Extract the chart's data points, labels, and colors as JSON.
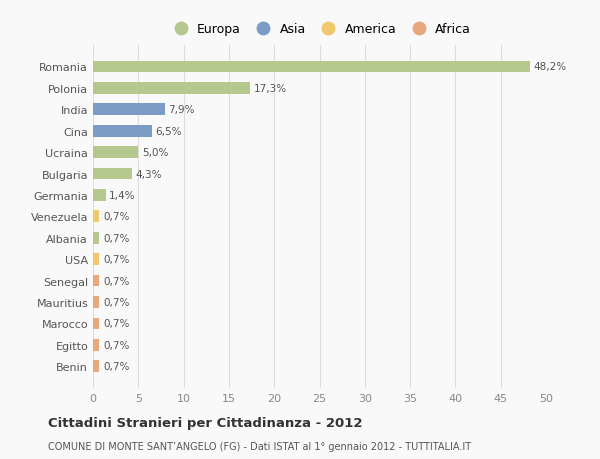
{
  "categories": [
    "Romania",
    "Polonia",
    "India",
    "Cina",
    "Ucraina",
    "Bulgaria",
    "Germania",
    "Venezuela",
    "Albania",
    "USA",
    "Senegal",
    "Mauritius",
    "Marocco",
    "Egitto",
    "Benin"
  ],
  "values": [
    48.2,
    17.3,
    7.9,
    6.5,
    5.0,
    4.3,
    1.4,
    0.7,
    0.7,
    0.7,
    0.7,
    0.7,
    0.7,
    0.7,
    0.7
  ],
  "labels": [
    "48,2%",
    "17,3%",
    "7,9%",
    "6,5%",
    "5,0%",
    "4,3%",
    "1,4%",
    "0,7%",
    "0,7%",
    "0,7%",
    "0,7%",
    "0,7%",
    "0,7%",
    "0,7%",
    "0,7%"
  ],
  "colors": [
    "#b5c98e",
    "#b5c98e",
    "#7b9cc4",
    "#7b9cc4",
    "#b5c98e",
    "#b5c98e",
    "#b5c98e",
    "#f0c86e",
    "#b5c98e",
    "#f0c86e",
    "#e8a87c",
    "#e8a87c",
    "#e8a87c",
    "#e8a87c",
    "#e8a87c"
  ],
  "legend_labels": [
    "Europa",
    "Asia",
    "America",
    "Africa"
  ],
  "legend_colors": [
    "#b5c98e",
    "#7b9cc4",
    "#f0c86e",
    "#e8a87c"
  ],
  "xlim": [
    0,
    50
  ],
  "xticks": [
    0,
    5,
    10,
    15,
    20,
    25,
    30,
    35,
    40,
    45,
    50
  ],
  "title": "Cittadini Stranieri per Cittadinanza - 2012",
  "subtitle": "COMUNE DI MONTE SANT’ANGELO (FG) - Dati ISTAT al 1° gennaio 2012 - TUTTITALIA.IT",
  "bg_color": "#f9f9f9",
  "grid_color": "#dddddd"
}
